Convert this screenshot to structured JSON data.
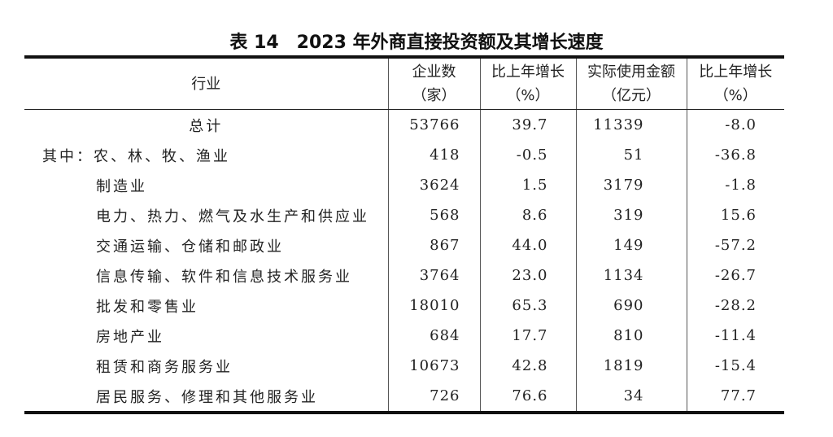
{
  "title": "表 14　2023 年外商直接投资额及其增长速度",
  "headers": {
    "industry": "行业",
    "firms": [
      "企业数",
      "（家）"
    ],
    "firms_growth": [
      "比上年增长",
      "（%）"
    ],
    "amount": [
      "实际使用金额",
      "（亿元）"
    ],
    "amount_growth": [
      "比上年增长",
      "（%）"
    ]
  },
  "rows": [
    {
      "label": "总计",
      "firms": "53766",
      "firms_growth": "39.7",
      "amount": "11339",
      "amount_growth": "-8.0"
    },
    {
      "label": "其中：农、林、牧、渔业",
      "firms": "418",
      "firms_growth": "-0.5",
      "amount": "51",
      "amount_growth": "-36.8"
    },
    {
      "label": "制造业",
      "firms": "3624",
      "firms_growth": "1.5",
      "amount": "3179",
      "amount_growth": "-1.8"
    },
    {
      "label": "电力、热力、燃气及水生产和供应业",
      "firms": "568",
      "firms_growth": "8.6",
      "amount": "319",
      "amount_growth": "15.6"
    },
    {
      "label": "交通运输、仓储和邮政业",
      "firms": "867",
      "firms_growth": "44.0",
      "amount": "149",
      "amount_growth": "-57.2"
    },
    {
      "label": "信息传输、软件和信息技术服务业",
      "firms": "3764",
      "firms_growth": "23.0",
      "amount": "1134",
      "amount_growth": "-26.7"
    },
    {
      "label": "批发和零售业",
      "firms": "18010",
      "firms_growth": "65.3",
      "amount": "690",
      "amount_growth": "-28.2"
    },
    {
      "label": "房地产业",
      "firms": "684",
      "firms_growth": "17.7",
      "amount": "810",
      "amount_growth": "-11.4"
    },
    {
      "label": "租赁和商务服务业",
      "firms": "10673",
      "firms_growth": "42.8",
      "amount": "1819",
      "amount_growth": "-15.4"
    },
    {
      "label": "居民服务、修理和其他服务业",
      "firms": "726",
      "firms_growth": "76.6",
      "amount": "34",
      "amount_growth": "77.7"
    }
  ]
}
